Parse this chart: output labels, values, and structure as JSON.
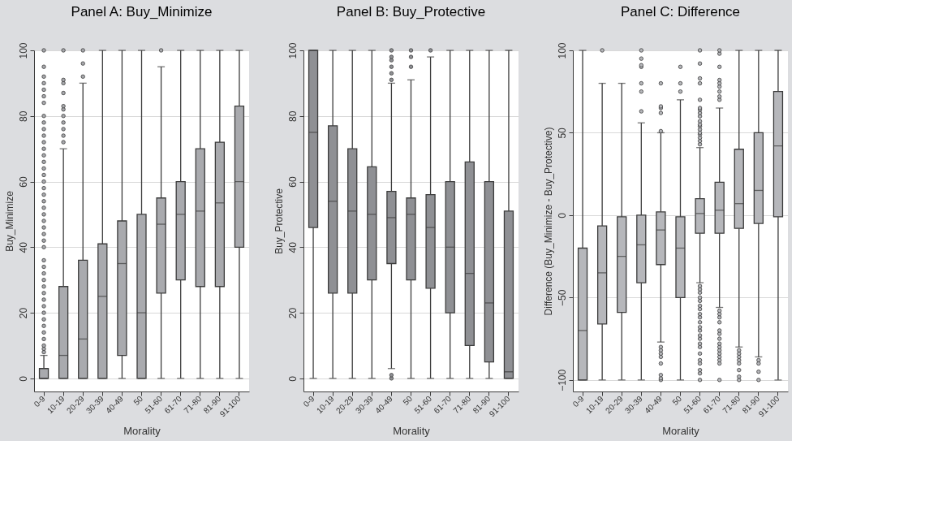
{
  "chart_data": [
    {
      "type": "box",
      "title": "Panel A: Buy_Minimize",
      "xlabel": "Morality",
      "ylabel": "Buy_Minimize",
      "categories": [
        "0-9",
        "10-19",
        "20-29",
        "30-39",
        "40-49",
        "50",
        "51-60",
        "61-70",
        "71-80",
        "81-90",
        "91-100"
      ],
      "ylim": [
        -4,
        100
      ],
      "yticks": [
        0,
        20,
        40,
        60,
        80,
        100
      ],
      "grid": "y",
      "series": [
        {
          "color": "#a9aaae",
          "boxes": [
            {
              "low": 0,
              "q1": 0,
              "median": 0,
              "q3": 3,
              "high": 7,
              "outliers": [
                8,
                9,
                10,
                12,
                14,
                16,
                18,
                20,
                22,
                24,
                26,
                28,
                30,
                32,
                34,
                36,
                40,
                42,
                44,
                46,
                48,
                50,
                52,
                54,
                56,
                58,
                60,
                62,
                64,
                66,
                68,
                70,
                72,
                74,
                76,
                78,
                80,
                84,
                86,
                88,
                90,
                92,
                95,
                100
              ]
            },
            {
              "low": 0,
              "q1": 0,
              "median": 7,
              "q3": 28,
              "high": 70,
              "outliers": [
                72,
                74,
                76,
                78,
                80,
                82,
                83,
                87,
                90,
                91,
                100
              ]
            },
            {
              "low": 0,
              "q1": 0,
              "median": 12,
              "q3": 36,
              "high": 90,
              "outliers": [
                92,
                96,
                100
              ]
            },
            {
              "low": 0,
              "q1": 0,
              "median": 25,
              "q3": 41,
              "high": 100
            },
            {
              "low": 0,
              "q1": 7,
              "median": 35,
              "q3": 48,
              "high": 100
            },
            {
              "low": 0,
              "q1": 0,
              "median": 20,
              "q3": 50,
              "high": 100
            },
            {
              "low": 0,
              "q1": 26,
              "median": 47,
              "q3": 55,
              "high": 95,
              "outliers": [
                100
              ]
            },
            {
              "low": 0,
              "q1": 30,
              "median": 50,
              "q3": 60,
              "high": 100
            },
            {
              "low": 0,
              "q1": 28,
              "median": 51,
              "q3": 70,
              "high": 100
            },
            {
              "low": 0,
              "q1": 28,
              "median": 53.5,
              "q3": 72,
              "high": 100
            },
            {
              "low": 0,
              "q1": 40,
              "median": 60,
              "q3": 83,
              "high": 100
            }
          ]
        }
      ]
    },
    {
      "type": "box",
      "title": "Panel B: Buy_Protective",
      "xlabel": "Morality",
      "ylabel": "Buy_Protective",
      "categories": [
        "0-9",
        "10-19",
        "20-29",
        "30-39",
        "40-49",
        "50",
        "51-60",
        "61-70",
        "71-80",
        "81-90",
        "91-100"
      ],
      "ylim": [
        -4,
        100
      ],
      "yticks": [
        0,
        20,
        40,
        60,
        80,
        100
      ],
      "grid": "y",
      "series": [
        {
          "color": "#8f9094",
          "boxes": [
            {
              "low": 0,
              "q1": 46,
              "median": 75,
              "q3": 100,
              "high": 100
            },
            {
              "low": 0,
              "q1": 26,
              "median": 54,
              "q3": 77,
              "high": 100
            },
            {
              "low": 0,
              "q1": 26,
              "median": 51,
              "q3": 70,
              "high": 100
            },
            {
              "low": 0,
              "q1": 30,
              "median": 50,
              "q3": 64.5,
              "high": 100
            },
            {
              "low": 3,
              "q1": 35,
              "median": 49,
              "q3": 57,
              "high": 90,
              "outliers": [
                0,
                1,
                91,
                93,
                95,
                97,
                98,
                100
              ]
            },
            {
              "low": 0,
              "q1": 30,
              "median": 50,
              "q3": 55,
              "high": 91,
              "outliers": [
                95,
                98,
                100
              ]
            },
            {
              "low": 0,
              "q1": 27.5,
              "median": 46,
              "q3": 56,
              "high": 98,
              "outliers": [
                100
              ]
            },
            {
              "low": 0,
              "q1": 20,
              "median": 40,
              "q3": 60,
              "high": 100
            },
            {
              "low": 0,
              "q1": 10,
              "median": 32,
              "q3": 66,
              "high": 100
            },
            {
              "low": 0,
              "q1": 5,
              "median": 23,
              "q3": 60,
              "high": 100
            },
            {
              "low": 0,
              "q1": 0,
              "median": 2,
              "q3": 51,
              "high": 100
            }
          ]
        }
      ]
    },
    {
      "type": "box",
      "title": "Panel C: Difference",
      "xlabel": "Morality",
      "ylabel": "Difference (Buy_Minimize - Buy_Protective)",
      "categories": [
        "0-9",
        "10-19",
        "20-29",
        "30-39",
        "40-49",
        "50",
        "51-60",
        "61-70",
        "71-80",
        "81-90",
        "91-100"
      ],
      "ylim": [
        -107,
        100
      ],
      "yticks": [
        -100,
        -50,
        0,
        50,
        100
      ],
      "grid": "y",
      "series": [
        {
          "color": "#b6b7bb",
          "boxes": [
            {
              "low": -100,
              "q1": -100,
              "median": -70,
              "q3": -20,
              "high": 100
            },
            {
              "low": -100,
              "q1": -66,
              "median": -35,
              "q3": -6.5,
              "high": 80,
              "outliers": [
                100
              ]
            },
            {
              "low": -100,
              "q1": -59,
              "median": -25,
              "q3": -1,
              "high": 80
            },
            {
              "low": -100,
              "q1": -41,
              "median": -18,
              "q3": 0,
              "high": 56,
              "outliers": [
                63,
                75,
                80,
                90,
                91,
                95,
                100
              ]
            },
            {
              "low": -77,
              "q1": -30,
              "median": -9,
              "q3": 2,
              "high": 50,
              "outliers": [
                -100,
                -99,
                -97,
                -90,
                -86,
                -84,
                -82,
                -80,
                51,
                62,
                65,
                66,
                80
              ]
            },
            {
              "low": -100,
              "q1": -50,
              "median": -20,
              "q3": -1,
              "high": 70,
              "outliers": [
                75,
                80,
                90
              ]
            },
            {
              "low": -41,
              "q1": -11,
              "median": 1,
              "q3": 10,
              "high": 41,
              "outliers": [
                -100,
                -96,
                -94,
                -90,
                -88,
                -84,
                -80,
                -78,
                -75,
                -73,
                -70,
                -68,
                -65,
                -62,
                -60,
                -57,
                -55,
                -52,
                -50,
                -47,
                -45,
                -43,
                43,
                45,
                47,
                49,
                50,
                52,
                54,
                55,
                57,
                60,
                62,
                64,
                65,
                70,
                80,
                83,
                92,
                100
              ]
            },
            {
              "low": -56,
              "q1": -11,
              "median": 3,
              "q3": 20,
              "high": 65,
              "outliers": [
                -100,
                -90,
                -88,
                -86,
                -84,
                -82,
                -80,
                -78,
                -75,
                -72,
                -70,
                -65,
                -62,
                -60,
                -58,
                70,
                72,
                75,
                78,
                80,
                82,
                90,
                98,
                100
              ]
            },
            {
              "low": -80,
              "q1": -8,
              "median": 7,
              "q3": 40,
              "high": 100,
              "outliers": [
                -100,
                -98,
                -94,
                -90,
                -88,
                -86,
                -84,
                -82
              ]
            },
            {
              "low": -86,
              "q1": -5,
              "median": 15,
              "q3": 50,
              "high": 100,
              "outliers": [
                -100,
                -95,
                -90,
                -88
              ]
            },
            {
              "low": -100,
              "q1": -1,
              "median": 42,
              "q3": 75,
              "high": 100
            }
          ]
        }
      ]
    }
  ]
}
